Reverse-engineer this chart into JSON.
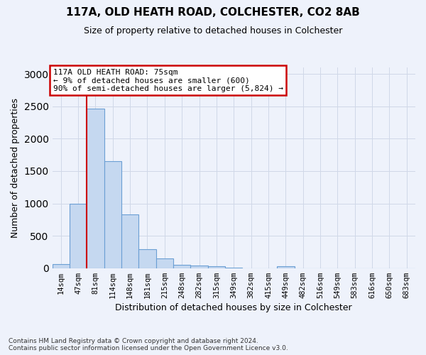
{
  "title_line1": "117A, OLD HEATH ROAD, COLCHESTER, CO2 8AB",
  "title_line2": "Size of property relative to detached houses in Colchester",
  "xlabel": "Distribution of detached houses by size in Colchester",
  "ylabel": "Number of detached properties",
  "bar_labels": [
    "14sqm",
    "47sqm",
    "81sqm",
    "114sqm",
    "148sqm",
    "181sqm",
    "215sqm",
    "248sqm",
    "282sqm",
    "315sqm",
    "349sqm",
    "382sqm",
    "415sqm",
    "449sqm",
    "482sqm",
    "516sqm",
    "549sqm",
    "583sqm",
    "616sqm",
    "650sqm",
    "683sqm"
  ],
  "bar_values": [
    60,
    1000,
    2460,
    1650,
    830,
    295,
    150,
    55,
    40,
    30,
    10,
    0,
    0,
    30,
    0,
    0,
    0,
    0,
    0,
    0,
    0
  ],
  "bar_color": "#c5d8f0",
  "bar_edge_color": "#6b9fd4",
  "ylim": [
    0,
    3100
  ],
  "yticks": [
    0,
    500,
    1000,
    1500,
    2000,
    2500,
    3000
  ],
  "property_line_x": 1.5,
  "property_line_color": "#cc0000",
  "annotation_text": "117A OLD HEATH ROAD: 75sqm\n← 9% of detached houses are smaller (600)\n90% of semi-detached houses are larger (5,824) →",
  "annotation_box_color": "#ffffff",
  "annotation_box_edge": "#cc0000",
  "footer_line1": "Contains HM Land Registry data © Crown copyright and database right 2024.",
  "footer_line2": "Contains public sector information licensed under the Open Government Licence v3.0.",
  "grid_color": "#d0d8e8",
  "bg_color": "#eef2fb"
}
